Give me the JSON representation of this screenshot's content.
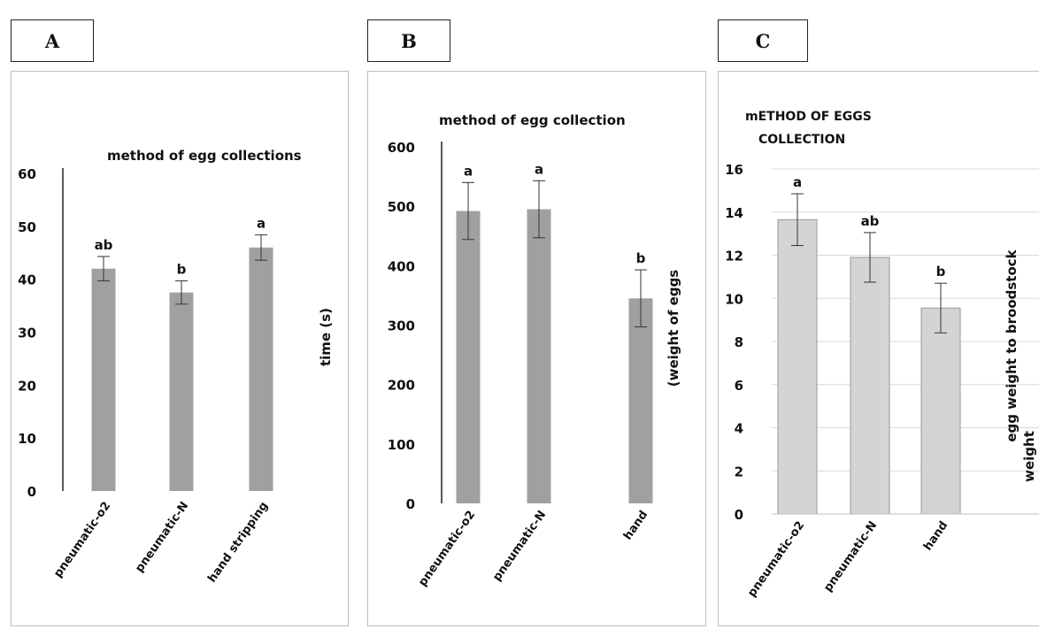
{
  "chart_data": [
    {
      "panel_label": "A",
      "type": "bar",
      "title": "method of egg collections",
      "ylabel": "time (s)",
      "categories": [
        "pneumatic-o2",
        "pneumatic-N",
        "hand stripping"
      ],
      "values": [
        42,
        37.5,
        46
      ],
      "errors": [
        2.3,
        2.2,
        2.4
      ],
      "significance": [
        "ab",
        "b",
        "a"
      ],
      "ylim": [
        0,
        60
      ],
      "yticks": [
        "0",
        "10",
        "20",
        "30",
        "40",
        "50",
        "60"
      ],
      "bar_color": "#a0a0a0",
      "grid": false
    },
    {
      "panel_label": "B",
      "type": "bar",
      "title": "method of egg collection",
      "ylabel": "(weight of eggs",
      "categories": [
        "pneumatic-o2",
        "pneumatic-N",
        "hand"
      ],
      "values": [
        492,
        495,
        345
      ],
      "errors": [
        48,
        48,
        48
      ],
      "significance": [
        "a",
        "a",
        "b"
      ],
      "ylim": [
        0,
        600
      ],
      "yticks": [
        "0",
        "100",
        "200",
        "300",
        "400",
        "500",
        "600"
      ],
      "bar_color": "#a0a0a0",
      "grid": false
    },
    {
      "panel_label": "C",
      "type": "bar",
      "title": "mETHOD OF EGGS COLLECTION",
      "title_lines": [
        "mETHOD OF EGGS",
        "COLLECTION"
      ],
      "ylabel": "egg weight to broodstock weight",
      "ylabel_lines": [
        "egg weight to broodstock",
        "weight"
      ],
      "categories": [
        "pneumatic-o2",
        "pneumatic-N",
        "hand"
      ],
      "values": [
        13.65,
        11.9,
        9.55
      ],
      "errors": [
        1.2,
        1.15,
        1.15
      ],
      "significance": [
        "a",
        "ab",
        "b"
      ],
      "ylim": [
        0,
        16
      ],
      "yticks": [
        "0",
        "2",
        "4",
        "6",
        "8",
        "10",
        "12",
        "14",
        "16"
      ],
      "bar_color": "#d4d4d4",
      "grid": true
    }
  ]
}
